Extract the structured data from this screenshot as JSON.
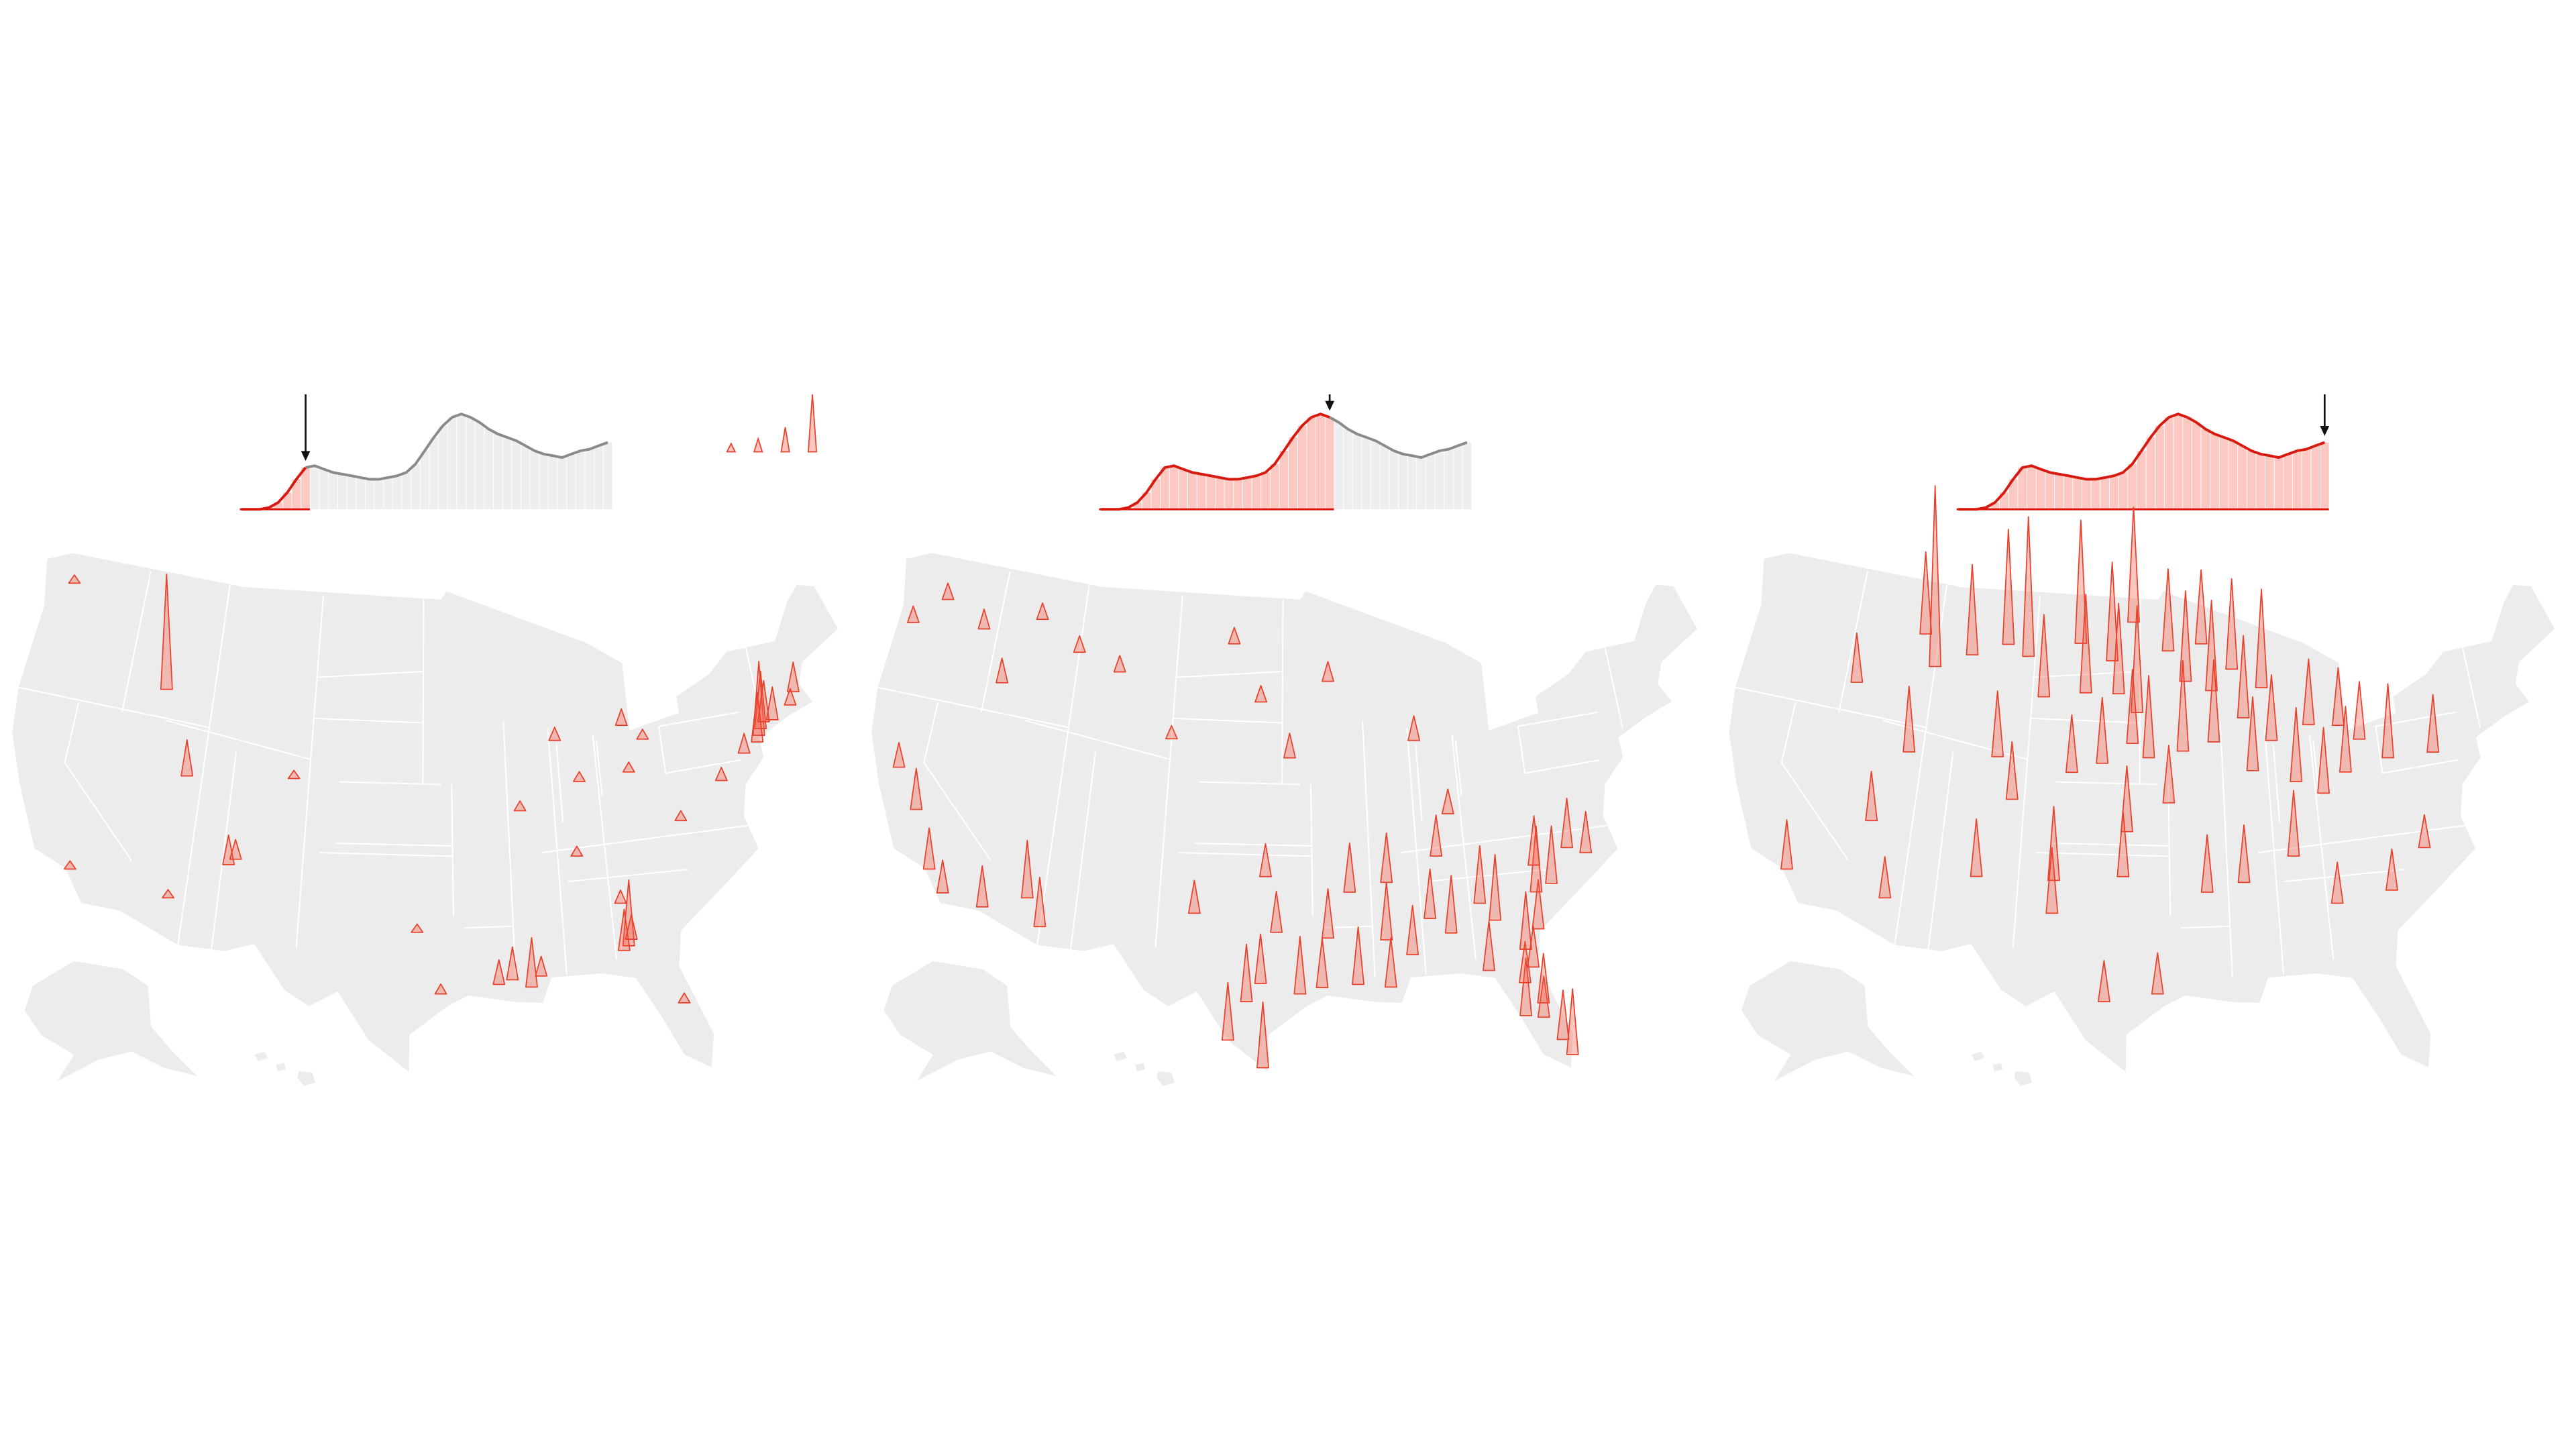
{
  "sparkline": {
    "values": [
      0,
      0,
      0,
      1,
      4,
      10,
      18,
      25,
      26,
      24,
      22,
      21,
      20,
      19,
      18,
      18,
      19,
      20,
      22,
      27,
      35,
      43,
      50,
      55,
      57,
      55,
      52,
      48,
      45,
      43,
      41,
      38,
      35,
      33,
      32,
      31,
      33,
      35,
      36,
      38,
      40
    ]
  },
  "legend_spikes": [
    5,
    8,
    15,
    35
  ],
  "panels": [
    {
      "cutoff_index": 7,
      "spikes": [
        {
          "lon": -74,
          "lat": 40.7,
          "value": 45
        },
        {
          "lon": -73.8,
          "lat": 41,
          "value": 35
        },
        {
          "lon": -73.5,
          "lat": 41.3,
          "value": 25
        },
        {
          "lon": -74.2,
          "lat": 40.4,
          "value": 30
        },
        {
          "lon": -72.9,
          "lat": 41.3,
          "value": 20
        },
        {
          "lon": -71.1,
          "lat": 42.4,
          "value": 18
        },
        {
          "lon": -75.2,
          "lat": 40,
          "value": 12
        },
        {
          "lon": -71.5,
          "lat": 41.8,
          "value": 10
        },
        {
          "lon": -84.2,
          "lat": 31.6,
          "value": 40
        },
        {
          "lon": -84.5,
          "lat": 31.4,
          "value": 25
        },
        {
          "lon": -84,
          "lat": 31.9,
          "value": 15
        },
        {
          "lon": -90.1,
          "lat": 30,
          "value": 30
        },
        {
          "lon": -91.2,
          "lat": 30.4,
          "value": 20
        },
        {
          "lon": -92,
          "lat": 30.2,
          "value": 15
        },
        {
          "lon": -89.5,
          "lat": 30.5,
          "value": 12
        },
        {
          "lon": -114.3,
          "lat": 43.5,
          "value": 70
        },
        {
          "lon": -112,
          "lat": 39.5,
          "value": 22
        },
        {
          "lon": -108.6,
          "lat": 35.5,
          "value": 18
        },
        {
          "lon": -108.2,
          "lat": 35.8,
          "value": 12
        },
        {
          "lon": -87.6,
          "lat": 41.9,
          "value": 8
        },
        {
          "lon": -83,
          "lat": 42.3,
          "value": 10
        },
        {
          "lon": -86.2,
          "lat": 39.8,
          "value": 6
        },
        {
          "lon": -82.9,
          "lat": 40,
          "value": 6
        },
        {
          "lon": -105,
          "lat": 40,
          "value": 5
        },
        {
          "lon": -112,
          "lat": 33.5,
          "value": 5
        },
        {
          "lon": -118.2,
          "lat": 34,
          "value": 5
        },
        {
          "lon": -122.3,
          "lat": 47.6,
          "value": 5
        },
        {
          "lon": -77,
          "lat": 38.9,
          "value": 8
        },
        {
          "lon": -80,
          "lat": 37.3,
          "value": 6
        },
        {
          "lon": -96.8,
          "lat": 32.8,
          "value": 5
        },
        {
          "lon": -95.4,
          "lat": 29.8,
          "value": 6
        },
        {
          "lon": -81.7,
          "lat": 41.5,
          "value": 6
        },
        {
          "lon": -84.4,
          "lat": 33.7,
          "value": 8
        },
        {
          "lon": -81.4,
          "lat": 28.5,
          "value": 6
        },
        {
          "lon": -86.8,
          "lat": 36.2,
          "value": 6
        },
        {
          "lon": -90.2,
          "lat": 38.6,
          "value": 6
        }
      ]
    },
    {
      "cutoff_index": 25,
      "spikes": [
        {
          "lon": -80.2,
          "lat": 25.8,
          "value": 40
        },
        {
          "lon": -80.6,
          "lat": 26.6,
          "value": 30
        },
        {
          "lon": -81.5,
          "lat": 27.8,
          "value": 25
        },
        {
          "lon": -82.5,
          "lat": 28,
          "value": 35
        },
        {
          "lon": -81.4,
          "lat": 28.5,
          "value": 30
        },
        {
          "lon": -82.3,
          "lat": 29.6,
          "value": 25
        },
        {
          "lon": -84.3,
          "lat": 30.4,
          "value": 30
        },
        {
          "lon": -81.7,
          "lat": 30.3,
          "value": 25
        },
        {
          "lon": -97.5,
          "lat": 26.2,
          "value": 40
        },
        {
          "lon": -98.5,
          "lat": 29.4,
          "value": 35
        },
        {
          "lon": -95.4,
          "lat": 29.8,
          "value": 35
        },
        {
          "lon": -96.8,
          "lat": 32.8,
          "value": 25
        },
        {
          "lon": -97.7,
          "lat": 30.3,
          "value": 30
        },
        {
          "lon": -99.5,
          "lat": 27.5,
          "value": 35
        },
        {
          "lon": -94.1,
          "lat": 30.1,
          "value": 30
        },
        {
          "lon": -101.8,
          "lat": 33.6,
          "value": 20
        },
        {
          "lon": -90.1,
          "lat": 30,
          "value": 30
        },
        {
          "lon": -92,
          "lat": 30.2,
          "value": 35
        },
        {
          "lon": -93.7,
          "lat": 32.5,
          "value": 30
        },
        {
          "lon": -90.2,
          "lat": 32.3,
          "value": 35
        },
        {
          "lon": -88.7,
          "lat": 31.5,
          "value": 30
        },
        {
          "lon": -86.3,
          "lat": 32.4,
          "value": 35
        },
        {
          "lon": -87.5,
          "lat": 33.2,
          "value": 30
        },
        {
          "lon": -84.4,
          "lat": 33.7,
          "value": 35
        },
        {
          "lon": -83.6,
          "lat": 32.8,
          "value": 40
        },
        {
          "lon": -82,
          "lat": 31.2,
          "value": 35
        },
        {
          "lon": -81.1,
          "lat": 32.1,
          "value": 30
        },
        {
          "lon": -80.9,
          "lat": 33.9,
          "value": 40
        },
        {
          "lon": -79.9,
          "lat": 34.2,
          "value": 35
        },
        {
          "lon": -80.8,
          "lat": 35.2,
          "value": 30
        },
        {
          "lon": -78.6,
          "lat": 35.8,
          "value": 30
        },
        {
          "lon": -77.5,
          "lat": 35.4,
          "value": 25
        },
        {
          "lon": -86.8,
          "lat": 36.2,
          "value": 25
        },
        {
          "lon": -90,
          "lat": 35.1,
          "value": 30
        },
        {
          "lon": -92.3,
          "lat": 34.7,
          "value": 30
        },
        {
          "lon": -97.5,
          "lat": 35.5,
          "value": 20
        },
        {
          "lon": -85.8,
          "lat": 38.2,
          "value": 15
        },
        {
          "lon": -112,
          "lat": 33.5,
          "value": 35
        },
        {
          "lon": -111,
          "lat": 32.2,
          "value": 30
        },
        {
          "lon": -114.6,
          "lat": 32.7,
          "value": 25
        },
        {
          "lon": -118.2,
          "lat": 34,
          "value": 25
        },
        {
          "lon": -117.1,
          "lat": 33,
          "value": 20
        },
        {
          "lon": -119.8,
          "lat": 36.7,
          "value": 25
        },
        {
          "lon": -121.5,
          "lat": 38.5,
          "value": 15
        },
        {
          "lon": -87.6,
          "lat": 41.9,
          "value": 15
        },
        {
          "lon": -93.3,
          "lat": 45,
          "value": 12
        },
        {
          "lon": -96,
          "lat": 41.3,
          "value": 15
        },
        {
          "lon": -98,
          "lat": 44,
          "value": 10
        },
        {
          "lon": -100,
          "lat": 46.8,
          "value": 10
        },
        {
          "lon": -104,
          "lat": 42,
          "value": 8
        },
        {
          "lon": -108,
          "lat": 45,
          "value": 10
        },
        {
          "lon": -111,
          "lat": 45.7,
          "value": 10
        },
        {
          "lon": -114,
          "lat": 47,
          "value": 10
        },
        {
          "lon": -116,
          "lat": 43.6,
          "value": 15
        },
        {
          "lon": -121,
          "lat": 47,
          "value": 10
        },
        {
          "lon": -123,
          "lat": 45.5,
          "value": 10
        },
        {
          "lon": -118,
          "lat": 46,
          "value": 12
        }
      ]
    },
    {
      "cutoff_index": 40,
      "spikes": [
        {
          "lon": -111,
          "lat": 45,
          "value": 110
        },
        {
          "lon": -104.5,
          "lat": 46,
          "value": 85
        },
        {
          "lon": -106,
          "lat": 46.5,
          "value": 70
        },
        {
          "lon": -100.8,
          "lat": 46.8,
          "value": 75
        },
        {
          "lon": -98.5,
          "lat": 46,
          "value": 60
        },
        {
          "lon": -97,
          "lat": 47.9,
          "value": 70
        },
        {
          "lon": -96.7,
          "lat": 43.5,
          "value": 65
        },
        {
          "lon": -98,
          "lat": 44.4,
          "value": 55
        },
        {
          "lon": -103.2,
          "lat": 44.1,
          "value": 50
        },
        {
          "lon": -100.3,
          "lat": 44.4,
          "value": 60
        },
        {
          "lon": -97,
          "lat": 42,
          "value": 45
        },
        {
          "lon": -95.9,
          "lat": 41.3,
          "value": 50
        },
        {
          "lon": -99,
          "lat": 41,
          "value": 40
        },
        {
          "lon": -101,
          "lat": 40.5,
          "value": 35
        },
        {
          "lon": -94.6,
          "lat": 39.1,
          "value": 35
        },
        {
          "lon": -97.3,
          "lat": 37.7,
          "value": 40
        },
        {
          "lon": -93.3,
          "lat": 45,
          "value": 55
        },
        {
          "lon": -94.5,
          "lat": 46.5,
          "value": 50
        },
        {
          "lon": -92.1,
          "lat": 46.8,
          "value": 45
        },
        {
          "lon": -91.5,
          "lat": 44.5,
          "value": 55
        },
        {
          "lon": -89.4,
          "lat": 43.1,
          "value": 50
        },
        {
          "lon": -88,
          "lat": 44.5,
          "value": 60
        },
        {
          "lon": -90,
          "lat": 45.5,
          "value": 55
        },
        {
          "lon": -93.6,
          "lat": 41.6,
          "value": 55
        },
        {
          "lon": -91.5,
          "lat": 42,
          "value": 50
        },
        {
          "lon": -89,
          "lat": 40.5,
          "value": 45
        },
        {
          "lon": -87.6,
          "lat": 41.9,
          "value": 40
        },
        {
          "lon": -86.2,
          "lat": 39.8,
          "value": 45
        },
        {
          "lon": -85,
          "lat": 42.5,
          "value": 40
        },
        {
          "lon": -83,
          "lat": 42.3,
          "value": 35
        },
        {
          "lon": -84.5,
          "lat": 39.1,
          "value": 40
        },
        {
          "lon": -82.9,
          "lat": 40,
          "value": 40
        },
        {
          "lon": -81.7,
          "lat": 41.5,
          "value": 35
        },
        {
          "lon": -80,
          "lat": 40.4,
          "value": 45
        },
        {
          "lon": -77,
          "lat": 40.3,
          "value": 35
        },
        {
          "lon": -86.8,
          "lat": 36.2,
          "value": 40
        },
        {
          "lon": -90,
          "lat": 35.1,
          "value": 35
        },
        {
          "lon": -92.3,
          "lat": 34.7,
          "value": 35
        },
        {
          "lon": -97.5,
          "lat": 35.5,
          "value": 40
        },
        {
          "lon": -101.8,
          "lat": 35.2,
          "value": 45
        },
        {
          "lon": -101.8,
          "lat": 33.6,
          "value": 40
        },
        {
          "lon": -98.5,
          "lat": 29.4,
          "value": 25
        },
        {
          "lon": -95.4,
          "lat": 29.8,
          "value": 25
        },
        {
          "lon": -106,
          "lat": 41,
          "value": 40
        },
        {
          "lon": -104.8,
          "lat": 39,
          "value": 35
        },
        {
          "lon": -108.5,
          "lat": 45.8,
          "value": 55
        },
        {
          "lon": -112,
          "lat": 46.5,
          "value": 50
        },
        {
          "lon": -113.6,
          "lat": 37.1,
          "value": 30
        },
        {
          "lon": -111.9,
          "lat": 40.7,
          "value": 40
        },
        {
          "lon": -116.2,
          "lat": 43.6,
          "value": 30
        },
        {
          "lon": -106.6,
          "lat": 35.1,
          "value": 35
        },
        {
          "lon": -112,
          "lat": 33.5,
          "value": 25
        },
        {
          "lon": -118.2,
          "lat": 34,
          "value": 30
        },
        {
          "lon": -84.4,
          "lat": 33.7,
          "value": 25
        },
        {
          "lon": -81,
          "lat": 34,
          "value": 25
        },
        {
          "lon": -78.6,
          "lat": 35.8,
          "value": 20
        }
      ]
    }
  ]
}
